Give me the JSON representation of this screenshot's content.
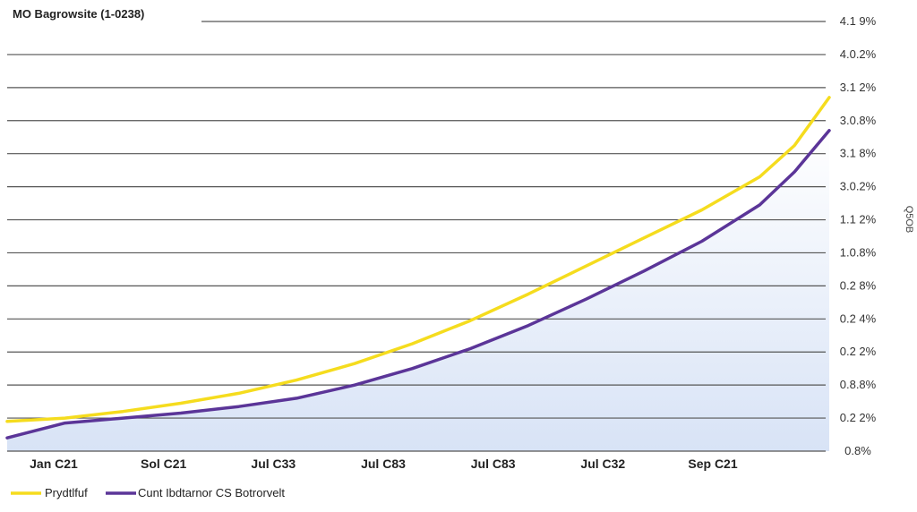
{
  "chart_data": {
    "type": "line",
    "title": "MO Bagrowsite (1-0238)",
    "xlabel": "",
    "ylabel": "Q5OB",
    "x_tick_labels": [
      "Jan C21",
      "Sol C21",
      "Jul C33",
      "Jul C83",
      "Jul C83",
      "Jul C32",
      "Sep C21"
    ],
    "y_tick_labels": [
      "4.1 9%",
      "4.0.2%",
      "3.1 2%",
      "3.0.8%",
      "3.1 8%",
      "3.0.2%",
      "1.1 2%",
      "1.0.8%",
      "0.2 8%",
      "0.2 4%",
      "0.2 2%",
      "0.8.8%",
      "0.2 2%",
      "0.8%"
    ],
    "ylim": [
      0,
      13
    ],
    "x": [
      0,
      0.5,
      1,
      1.5,
      2,
      2.5,
      3,
      3.5,
      4,
      4.5,
      5,
      5.5,
      6,
      6.5,
      6.8,
      7.1
    ],
    "series": [
      {
        "name": "Prydtlfuf",
        "color": "#F5DC1E",
        "values": [
          0.9,
          1.0,
          1.2,
          1.45,
          1.75,
          2.15,
          2.65,
          3.25,
          3.95,
          4.75,
          5.6,
          6.45,
          7.3,
          8.3,
          9.25,
          10.7
        ]
      },
      {
        "name": "Cunt Ibdtarnor CS Botrorvelt",
        "color": "#5B3598",
        "values": [
          0.4,
          0.85,
          1.0,
          1.15,
          1.35,
          1.6,
          2.0,
          2.5,
          3.1,
          3.8,
          4.6,
          5.45,
          6.35,
          7.45,
          8.45,
          9.7
        ]
      }
    ]
  }
}
